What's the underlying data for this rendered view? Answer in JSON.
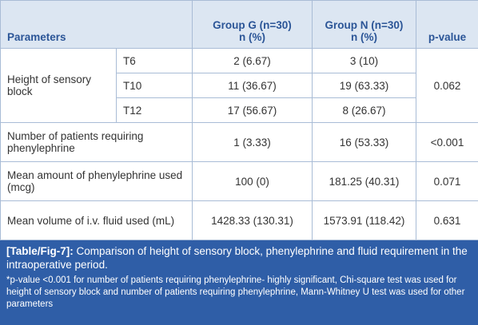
{
  "table": {
    "header": {
      "parameters": "Parameters",
      "group_g": [
        "Group G (n=30)",
        "n (%)"
      ],
      "group_n": [
        "Group N (n=30)",
        "n (%)"
      ],
      "p_value": "p-value"
    },
    "rows": [
      {
        "parameter": "Height of sensory block",
        "levels": [
          {
            "level": "T6",
            "group_g": "2 (6.67)",
            "group_n": "3 (10)"
          },
          {
            "level": "T10",
            "group_g": "11 (36.67)",
            "group_n": "19 (63.33)"
          },
          {
            "level": "T12",
            "group_g": "17 (56.67)",
            "group_n": "8 (26.67)"
          }
        ],
        "p_value": "0.062"
      },
      {
        "parameter": "Number of patients requiring phenylephrine",
        "group_g": "1 (3.33)",
        "group_n": "16 (53.33)",
        "p_value": "<0.001"
      },
      {
        "parameter": "Mean amount of phenylephrine used (mcg)",
        "group_g": "100 (0)",
        "group_n": "181.25 (40.31)",
        "p_value": "0.071"
      },
      {
        "parameter": "Mean volume of i.v. fluid used (mL)",
        "group_g": "1428.33 (130.31)",
        "group_n": "1573.91 (118.42)",
        "p_value": "0.631"
      }
    ]
  },
  "caption": {
    "label": "[Table/Fig-7]:",
    "text": "Comparison of height of sensory block, phenylephrine and fluid requirement in the intraoperative period.",
    "footnote": "*p-value <0.001 for number of patients requiring phenylephrine- highly significant, Chi-square test was used for height of sensory block and number of patients requiring phenylephrine, Mann-Whitney U test was used for other parameters"
  }
}
